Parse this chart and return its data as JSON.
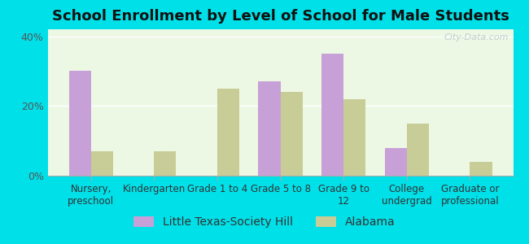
{
  "title": "School Enrollment by Level of School for Male Students",
  "categories": [
    "Nursery,\npreschool",
    "Kindergarten",
    "Grade 1 to 4",
    "Grade 5 to 8",
    "Grade 9 to\n12",
    "College\nundergrad",
    "Graduate or\nprofessional"
  ],
  "series": {
    "Little Texas-Society Hill": [
      30,
      0,
      0,
      27,
      35,
      8,
      0
    ],
    "Alabama": [
      7,
      7,
      25,
      24,
      22,
      15,
      4
    ]
  },
  "colors": {
    "Little Texas-Society Hill": "#c8a0d8",
    "Alabama": "#c8cc96"
  },
  "ylim": [
    0,
    42
  ],
  "yticks": [
    0,
    20,
    40
  ],
  "ytick_labels": [
    "0%",
    "20%",
    "40%"
  ],
  "background_color": "#00e0e8",
  "plot_bg": "#edf8e4",
  "bar_width": 0.35,
  "legend_labels": [
    "Little Texas-Society Hill",
    "Alabama"
  ],
  "watermark": "City-Data.com",
  "title_fontsize": 13,
  "tick_fontsize": 9,
  "legend_fontsize": 10
}
